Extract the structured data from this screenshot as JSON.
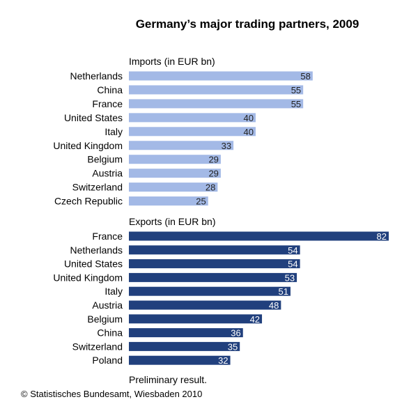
{
  "chart_data": {
    "type": "bar",
    "orientation": "horizontal",
    "title": "Germany’s major trading partners, 2009",
    "panels": [
      {
        "label": "Imports (in EUR bn)",
        "color": "#A3B9E6",
        "label_color": "#222222",
        "categories": [
          "Netherlands",
          "China",
          "France",
          "United States",
          "Italy",
          "United Kingdom",
          "Belgium",
          "Austria",
          "Switzerland",
          "Czech Republic"
        ],
        "values": [
          58,
          55,
          55,
          40,
          40,
          33,
          29,
          29,
          28,
          25
        ]
      },
      {
        "label": "Exports (in EUR bn)",
        "color": "#21407D",
        "label_color": "#FFFFFF",
        "categories": [
          "France",
          "Netherlands",
          "United States",
          "United Kingdom",
          "Italy",
          "Austria",
          "Belgium",
          "China",
          "Switzerland",
          "Poland"
        ],
        "values": [
          82,
          54,
          54,
          53,
          51,
          48,
          42,
          36,
          35,
          32
        ]
      }
    ],
    "xlim": [
      0,
      82
    ],
    "grid": false,
    "note": "Preliminary result.",
    "source": "© Statistisches Bundesamt, Wiesbaden 2010"
  }
}
